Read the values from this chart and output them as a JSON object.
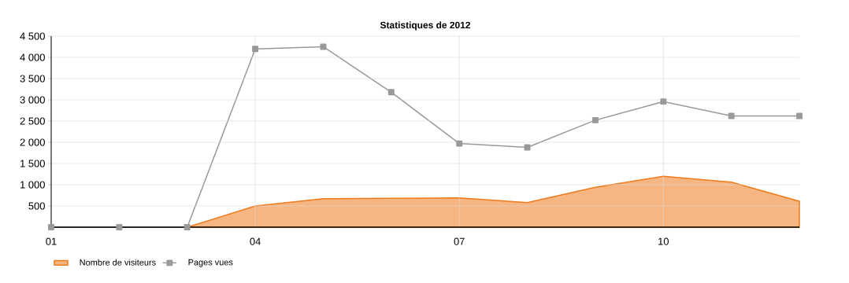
{
  "chart_data": {
    "type": "area",
    "title": "Statistiques de 2012",
    "categories": [
      "01",
      null,
      null,
      "04",
      null,
      null,
      "07",
      null,
      null,
      "10",
      null,
      null
    ],
    "series": [
      {
        "name": "Nombre de visiteurs",
        "color": "#f07a1a",
        "marker": "none",
        "values": [
          0,
          0,
          0,
          500,
          670,
          680,
          690,
          580,
          940,
          1200,
          1060,
          610
        ]
      },
      {
        "name": "Pages vues",
        "type": "line",
        "color": "#999999",
        "marker": "square",
        "values": [
          0,
          0,
          0,
          4200,
          4250,
          3180,
          1970,
          1880,
          2520,
          2960,
          2620,
          2620
        ]
      }
    ],
    "ylim": [
      0,
      4500
    ],
    "yticks": [
      500,
      {
        "value": 1000,
        "label": "1 000"
      },
      {
        "value": 1500,
        "label": "1 500"
      },
      {
        "value": 2000,
        "label": "2 000"
      },
      {
        "value": 2500,
        "label": "2 500"
      },
      {
        "value": 3000,
        "label": "3 000"
      },
      {
        "value": 3500,
        "label": "3 500"
      },
      {
        "value": 4000,
        "label": "4 000"
      },
      {
        "value": 4500,
        "label": "4 500"
      }
    ],
    "grid": true,
    "legend": "bottom left"
  }
}
